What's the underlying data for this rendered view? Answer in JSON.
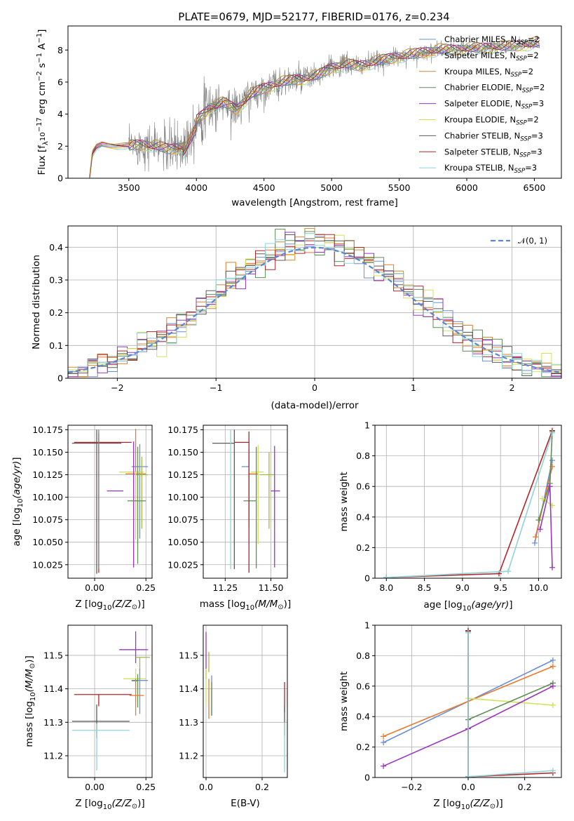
{
  "colors": [
    "#6a8fd8",
    "#e87a2e",
    "#c9892e",
    "#5f8f56",
    "#9a35c0",
    "#d4e25a",
    "#5b5b5b",
    "#b0262a",
    "#8fd3d6"
  ],
  "colors_extra": {
    "pink": "#e58fc0",
    "olive": "#a0b84a",
    "gray": "#808080"
  },
  "chart_data": [
    {
      "id": "spectrum",
      "type": "line",
      "title": "PLATE=0679, MJD=52177, FIBERID=0176, z=0.234",
      "xlabel": "wavelength [Angstrom, rest frame]",
      "ylabel": "Flux [f_λ10^-17 erg cm^-2 s^-1 A^-1]",
      "xlim": [
        3050,
        6700
      ],
      "ylim": [
        0,
        9.5
      ],
      "xticks": [
        3500,
        4000,
        4500,
        5000,
        5500,
        6000,
        6500
      ],
      "yticks": [
        0,
        2,
        4,
        6,
        8
      ],
      "grid": false,
      "legend_loc": "right",
      "legend": [
        "Chabrier MILES, N_SSP=2",
        "Salpeter MILES, N_SSP=2",
        "Kroupa MILES, N_SSP=2",
        "Chabrier ELODIE, N_SSP=2",
        "Salpeter ELODIE, N_SSP=3",
        "Kroupa ELODIE, N_SSP=2",
        "Chabrier STELIB, N_SSP=3",
        "Salpeter STELIB, N_SSP=3",
        "Kroupa STELIB, N_SSP=3"
      ],
      "continuum": [
        [
          3210,
          0.0
        ],
        [
          3230,
          1.5
        ],
        [
          3260,
          1.9
        ],
        [
          3300,
          2.1
        ],
        [
          3400,
          2.0
        ],
        [
          3500,
          2.0
        ],
        [
          3600,
          2.1
        ],
        [
          3700,
          2.0
        ],
        [
          3800,
          1.8
        ],
        [
          3900,
          2.0
        ],
        [
          4000,
          3.6
        ],
        [
          4100,
          4.4
        ],
        [
          4200,
          4.7
        ],
        [
          4300,
          4.3
        ],
        [
          4400,
          5.2
        ],
        [
          4500,
          5.6
        ],
        [
          4600,
          5.9
        ],
        [
          4700,
          6.1
        ],
        [
          4800,
          6.2
        ],
        [
          4900,
          6.4
        ],
        [
          5000,
          6.9
        ],
        [
          5100,
          7.1
        ],
        [
          5200,
          7.0
        ],
        [
          5300,
          7.2
        ],
        [
          5400,
          7.4
        ],
        [
          5500,
          7.6
        ],
        [
          5600,
          7.7
        ],
        [
          5700,
          7.9
        ],
        [
          5800,
          8.0
        ],
        [
          5900,
          8.0
        ],
        [
          6000,
          8.1
        ],
        [
          6100,
          8.1
        ],
        [
          6200,
          8.2
        ],
        [
          6300,
          8.2
        ],
        [
          6400,
          8.3
        ],
        [
          6500,
          8.4
        ]
      ],
      "data_noise": [
        [
          3500,
          2.0,
          0.9
        ],
        [
          3700,
          2.0,
          1.3
        ],
        [
          3900,
          2.5,
          1.6
        ],
        [
          4000,
          4.0,
          1.6
        ],
        [
          4500,
          5.6,
          0.9
        ],
        [
          5000,
          6.8,
          0.7
        ],
        [
          5500,
          7.6,
          0.5
        ],
        [
          6000,
          8.1,
          0.4
        ],
        [
          6500,
          8.4,
          0.3
        ]
      ]
    },
    {
      "id": "residuals",
      "type": "histogram",
      "xlabel": "(data-model)/error",
      "ylabel": "Normed distribution",
      "xlim": [
        -2.5,
        2.5
      ],
      "ylim": [
        0,
        0.465
      ],
      "xticks": [
        -2,
        -1,
        0,
        1,
        2
      ],
      "yticks": [
        0.0,
        0.1,
        0.2,
        0.3,
        0.4
      ],
      "grid": true,
      "legend": [
        "𝒩(0, 1)"
      ],
      "legend_loc": "top-right",
      "bin_width": 0.1
    },
    {
      "id": "age_vs_Z",
      "type": "errorbar",
      "xlabel": "Z [log10(Z/Z⊙)]",
      "ylabel": "age [log10(age/yr)]",
      "xlim": [
        -0.13,
        0.28
      ],
      "ylim": [
        10.01,
        10.18
      ],
      "xticks": [
        0.0,
        0.25
      ],
      "xticklabels": [
        "0.00",
        "0.25"
      ],
      "yticks": [
        10.025,
        10.05,
        10.075,
        10.1,
        10.125,
        10.15,
        10.175
      ],
      "yticklabels": [
        "10.025",
        "10.050",
        "10.075",
        "10.100",
        "10.125",
        "10.150",
        "10.175"
      ],
      "grid": true,
      "points": [
        {
          "x": 0.2,
          "xerr": [
            0.05,
            0.05
          ],
          "y": 10.126,
          "yerr": [
            0.05,
            0.05
          ],
          "c": 1
        },
        {
          "x": 0.22,
          "xerr": [
            0.04,
            0.04
          ],
          "y": 10.134,
          "yerr": [
            0.08,
            0.025
          ],
          "c": 0
        },
        {
          "x": 0.2,
          "xerr": [
            0.08,
            0.04
          ],
          "y": 10.128,
          "yerr": [
            0.075,
            0.0
          ],
          "c": 5
        },
        {
          "x": 0.23,
          "xerr": [
            0.03,
            0.03
          ],
          "y": 10.125,
          "yerr": [
            0.06,
            0.02
          ],
          "c": 11
        },
        {
          "x": 0.14,
          "xerr": [
            0.08,
            0.0
          ],
          "y": 10.107,
          "yerr": [
            0.0,
            0.0
          ],
          "c": 4
        },
        {
          "x": 0.19,
          "xerr": [
            0.0,
            0.0
          ],
          "y": 10.107,
          "yerr": [
            0.085,
            0.055
          ],
          "c": 4
        },
        {
          "x": 0.21,
          "xerr": [
            0.05,
            0.04
          ],
          "y": 10.096,
          "yerr": [
            0.07,
            0.06
          ],
          "c": 3
        },
        {
          "x": 0.02,
          "xerr": [
            0.12,
            0.16
          ],
          "y": 10.161,
          "yerr": [
            0.145,
            0.01
          ],
          "c": 7
        },
        {
          "x": 0.01,
          "xerr": [
            0.12,
            0.12
          ],
          "y": 10.16,
          "yerr": [
            0.145,
            0.015
          ],
          "c": 6
        },
        {
          "x": 0.02,
          "xerr": [
            0.0,
            0.0
          ],
          "y": 10.16,
          "yerr": [
            0.14,
            0.015
          ],
          "c": 10
        }
      ]
    },
    {
      "id": "age_vs_mass",
      "type": "errorbar",
      "xlabel": "mass [log10(M/M⊙)]",
      "xlim": [
        11.13,
        11.59
      ],
      "ylim": [
        10.01,
        10.18
      ],
      "xticks": [
        11.25,
        11.5
      ],
      "xticklabels": [
        "11.25",
        "11.50"
      ],
      "yticks": [
        10.025,
        10.05,
        10.075,
        10.1,
        10.125,
        10.15,
        10.175
      ],
      "yticklabels": [
        "10.025",
        "10.050",
        "10.075",
        "10.100",
        "10.125",
        "10.150",
        "10.175"
      ],
      "grid": true,
      "points": [
        {
          "x": 11.38,
          "xerr": [
            0.04,
            0.0
          ],
          "y": 10.134,
          "yerr": [
            0.06,
            0.02
          ],
          "c": 0
        },
        {
          "x": 11.38,
          "xerr": [
            0.0,
            0.05
          ],
          "y": 10.126,
          "yerr": [
            0.06,
            0.0
          ],
          "c": 1
        },
        {
          "x": 11.43,
          "xerr": [
            0.04,
            0.03
          ],
          "y": 10.128,
          "yerr": [
            0.08,
            0.03
          ],
          "c": 5
        },
        {
          "x": 11.49,
          "xerr": [
            0.05,
            0.03
          ],
          "y": 10.125,
          "yerr": [
            0.06,
            0.025
          ],
          "c": 11
        },
        {
          "x": 11.52,
          "xerr": [
            0.02,
            0.03
          ],
          "y": 10.107,
          "yerr": [
            0.085,
            0.05
          ],
          "c": 4
        },
        {
          "x": 11.42,
          "xerr": [
            0.07,
            0.0
          ],
          "y": 10.096,
          "yerr": [
            0.075,
            0.06
          ],
          "c": 3
        },
        {
          "x": 11.38,
          "xerr": [
            0.08,
            0.0
          ],
          "y": 10.161,
          "yerr": [
            0.145,
            0.012
          ],
          "c": 7
        },
        {
          "x": 11.3,
          "xerr": [
            0.12,
            0.0
          ],
          "y": 10.16,
          "yerr": [
            0.14,
            0.015
          ],
          "c": 6
        },
        {
          "x": 11.28,
          "xerr": [
            0.0,
            0.0
          ],
          "y": 10.16,
          "yerr": [
            0.14,
            0.015
          ],
          "c": 8
        }
      ]
    },
    {
      "id": "mw_vs_age",
      "type": "line",
      "xlabel": "age [log10(age/yr)]",
      "ylabel": "mass weight",
      "xlim": [
        7.85,
        10.3
      ],
      "ylim": [
        0,
        1.0
      ],
      "xticks": [
        8.0,
        8.5,
        9.0,
        9.5,
        10.0
      ],
      "xticklabels": [
        "8.0",
        "8.5",
        "9.0",
        "9.5",
        "10.0"
      ],
      "yticks": [
        0.0,
        0.2,
        0.4,
        0.6,
        0.8,
        1.0
      ],
      "grid": true,
      "series": [
        {
          "c": 0,
          "x": [
            9.95,
            10.18
          ],
          "y": [
            0.23,
            0.77
          ]
        },
        {
          "c": 1,
          "x": [
            9.96,
            10.18
          ],
          "y": [
            0.27,
            0.73
          ]
        },
        {
          "c": 5,
          "x": [
            10.05,
            10.18
          ],
          "y": [
            0.52,
            0.475
          ]
        },
        {
          "c": 3,
          "x": [
            10.0,
            10.15,
            10.18
          ],
          "y": [
            0.38,
            0.62,
            0.96
          ]
        },
        {
          "c": 4,
          "x": [
            10.02,
            10.15,
            10.18
          ],
          "y": [
            0.32,
            0.6,
            0.07
          ]
        },
        {
          "c": 7,
          "x": [
            8.0,
            9.48,
            10.18
          ],
          "y": [
            0.005,
            0.03,
            0.965
          ]
        },
        {
          "c": 8,
          "x": [
            8.0,
            9.6,
            10.18
          ],
          "y": [
            0.005,
            0.045,
            0.95
          ]
        }
      ]
    },
    {
      "id": "mass_vs_Z",
      "type": "errorbar",
      "xlabel": "Z [log10(Z/Z⊙)]",
      "ylabel": "mass [log10(M/M⊙)]",
      "xlim": [
        -0.13,
        0.28
      ],
      "ylim": [
        11.135,
        11.59
      ],
      "xticks": [
        0.0,
        0.25
      ],
      "xticklabels": [
        "0.00",
        "0.25"
      ],
      "yticks": [
        11.2,
        11.3,
        11.4,
        11.5
      ],
      "yticklabels": [
        "11.2",
        "11.3",
        "11.4",
        "11.5"
      ],
      "grid": true,
      "points": [
        {
          "x": 0.2,
          "xerr": [
            0.08,
            0.06
          ],
          "y": 11.517,
          "yerr": [
            0.04,
            0.055
          ],
          "c": 4
        },
        {
          "x": 0.22,
          "xerr": [
            0.02,
            0.05
          ],
          "y": 11.494,
          "yerr": [
            0.04,
            0.0
          ],
          "c": 11
        },
        {
          "x": 0.2,
          "xerr": [
            0.06,
            0.05
          ],
          "y": 11.43,
          "yerr": [
            0.07,
            0.03
          ],
          "c": 5
        },
        {
          "x": 0.22,
          "xerr": [
            0.04,
            0.04
          ],
          "y": 11.425,
          "yerr": [
            0.1,
            0.035
          ],
          "c": 0
        },
        {
          "x": 0.21,
          "xerr": [
            0.03,
            0.0
          ],
          "y": 11.424,
          "yerr": [
            0.08,
            0.02
          ],
          "c": 3
        },
        {
          "x": 0.2,
          "xerr": [
            0.03,
            0.04
          ],
          "y": 11.38,
          "yerr": [
            0.06,
            0.05
          ],
          "c": 1
        },
        {
          "x": 0.02,
          "xerr": [
            0.12,
            0.16
          ],
          "y": 11.383,
          "yerr": [
            0.035,
            0.0
          ],
          "c": 7
        },
        {
          "x": 0.01,
          "xerr": [
            0.12,
            0.16
          ],
          "y": 11.303,
          "yerr": [
            0.05,
            0.05
          ],
          "c": 6
        },
        {
          "x": 0.01,
          "xerr": [
            0.12,
            0.16
          ],
          "y": 11.276,
          "yerr": [
            0.12,
            0.02
          ],
          "c": 8
        }
      ]
    },
    {
      "id": "mass_vs_EBV",
      "type": "errorbar",
      "xlabel": "E(B-V)",
      "xlim": [
        -0.01,
        0.29
      ],
      "ylim": [
        11.135,
        11.59
      ],
      "xticks": [
        0.0,
        0.2
      ],
      "xticklabels": [
        "0.0",
        "0.2"
      ],
      "yticks": [
        11.2,
        11.3,
        11.4,
        11.5
      ],
      "yticklabels": [
        "11.2",
        "11.3",
        "11.4",
        "11.5"
      ],
      "grid": true,
      "points": [
        {
          "x": 0.0,
          "xerr": [
            0,
            0
          ],
          "y": 11.5,
          "yerr": [
            0.07,
            0.07
          ],
          "c": 4
        },
        {
          "x": 0.01,
          "xerr": [
            0,
            0
          ],
          "y": 11.49,
          "yerr": [
            0.04,
            0.02
          ],
          "c": 11
        },
        {
          "x": 0.0,
          "xerr": [
            0,
            0
          ],
          "y": 11.43,
          "yerr": [
            0.08,
            0.03
          ],
          "c": 5
        },
        {
          "x": 0.01,
          "xerr": [
            0,
            0
          ],
          "y": 11.38,
          "yerr": [
            0.07,
            0.05
          ],
          "c": 1
        },
        {
          "x": 0.02,
          "xerr": [
            0,
            0
          ],
          "y": 11.42,
          "yerr": [
            0.1,
            0.02
          ],
          "c": 0
        },
        {
          "x": 0.02,
          "xerr": [
            0,
            0
          ],
          "y": 11.38,
          "yerr": [
            0.06,
            0.04
          ],
          "c": 3
        },
        {
          "x": 0.28,
          "xerr": [
            0,
            0
          ],
          "y": 11.38,
          "yerr": [
            0.05,
            0.04
          ],
          "c": 7
        },
        {
          "x": 0.28,
          "xerr": [
            0,
            0
          ],
          "y": 11.3,
          "yerr": [
            0.04,
            0.05
          ],
          "c": 6
        },
        {
          "x": 0.28,
          "xerr": [
            0,
            0
          ],
          "y": 11.28,
          "yerr": [
            0.13,
            0.02
          ],
          "c": 8
        }
      ]
    },
    {
      "id": "mw_vs_Z",
      "type": "line",
      "xlabel": "Z [log10(Z/Z⊙)]",
      "ylabel": "mass weight",
      "xlim": [
        -0.33,
        0.33
      ],
      "ylim": [
        0,
        1.0
      ],
      "xticks": [
        -0.2,
        0.0,
        0.2
      ],
      "xticklabels": [
        "−0.2",
        "0.0",
        "0.2"
      ],
      "yticks": [
        0.0,
        0.2,
        0.4,
        0.6,
        0.8,
        1.0
      ],
      "grid": true,
      "series": [
        {
          "c": 0,
          "x": [
            -0.3,
            0.3
          ],
          "y": [
            0.23,
            0.77
          ]
        },
        {
          "c": 1,
          "x": [
            -0.3,
            0.3
          ],
          "y": [
            0.27,
            0.73
          ]
        },
        {
          "c": 5,
          "x": [
            0.0,
            0.3
          ],
          "y": [
            0.52,
            0.475
          ]
        },
        {
          "c": 3,
          "x": [
            0.0,
            0.3
          ],
          "y": [
            0.38,
            0.62
          ]
        },
        {
          "c": 4,
          "x": [
            -0.3,
            0.0,
            0.3
          ],
          "y": [
            0.075,
            0.32,
            0.6
          ]
        },
        {
          "c": 6,
          "x": [
            0.0,
            0.0
          ],
          "y": [
            0.96,
            0.005
          ]
        },
        {
          "c": 7,
          "x": [
            0.0,
            0.0,
            0.3
          ],
          "y": [
            0.965,
            0.005,
            0.03
          ]
        },
        {
          "c": 8,
          "x": [
            0.0,
            0.0,
            0.3
          ],
          "y": [
            0.95,
            0.005,
            0.045
          ]
        }
      ]
    }
  ]
}
